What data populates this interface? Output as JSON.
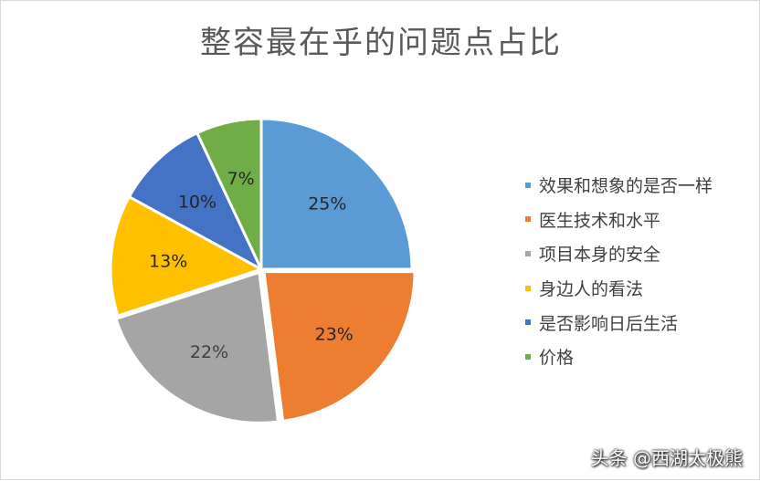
{
  "chart_data": {
    "type": "pie",
    "title": "整容最在乎的问题点占比",
    "categories": [
      "效果和想象的是否一样",
      "医生技术和水平",
      "项目本身的安全",
      "身边人的看法",
      "是否影响日后生活",
      "价格"
    ],
    "values": [
      25,
      23,
      22,
      13,
      10,
      7
    ],
    "value_labels": [
      "25%",
      "23%",
      "22%",
      "13%",
      "10%",
      "7%"
    ],
    "colors": [
      "#5B9BD5",
      "#ED7D31",
      "#A5A5A5",
      "#FFC000",
      "#4472C4",
      "#70AD47"
    ],
    "legend_position": "right",
    "start_angle": "top (12 o'clock), clockwise"
  },
  "watermark": "头条 @西湖太极熊"
}
